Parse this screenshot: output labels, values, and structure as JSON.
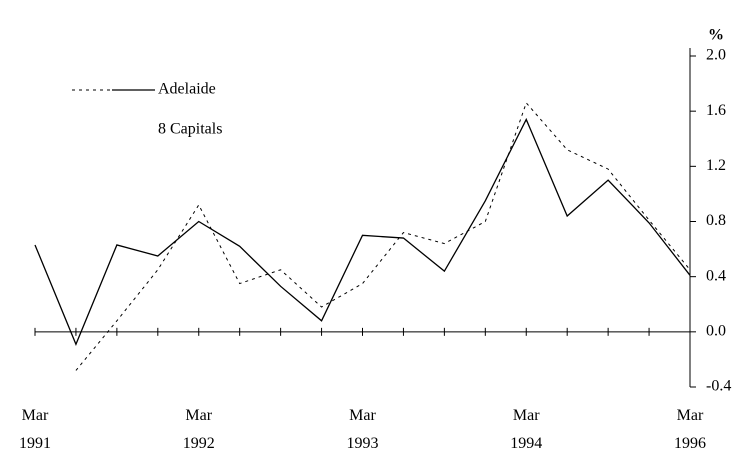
{
  "chart_data": {
    "type": "line",
    "y_unit": "%",
    "categories": [
      "Mar 1991",
      null,
      null,
      null,
      "Mar 1992",
      null,
      null,
      null,
      "Mar 1993",
      null,
      null,
      null,
      "Mar 1994",
      null,
      null,
      null,
      "Mar 1996"
    ],
    "series": [
      {
        "name": "Adelaide",
        "color": "#000000",
        "style": "solid",
        "values": [
          0.63,
          -0.09,
          0.63,
          0.55,
          0.8,
          0.62,
          0.33,
          0.08,
          0.7,
          0.68,
          0.44,
          0.95,
          1.54,
          0.84,
          1.1,
          0.79,
          0.41
        ]
      },
      {
        "name": "8 Capitals",
        "color": "#000000",
        "style": "dashed",
        "values": [
          null,
          -0.28,
          0.08,
          0.45,
          0.92,
          0.35,
          0.45,
          0.18,
          0.35,
          0.72,
          0.64,
          0.8,
          1.66,
          1.32,
          1.18,
          0.81,
          0.45
        ]
      }
    ],
    "ylim": [
      -0.4,
      2.0
    ],
    "yticks": [
      {
        "value": -0.4,
        "label": "-0.4"
      },
      {
        "value": 0,
        "label": "0.0"
      },
      0.4,
      0.8,
      1.2,
      1.6,
      {
        "value": 2,
        "label": "2.0"
      }
    ]
  }
}
